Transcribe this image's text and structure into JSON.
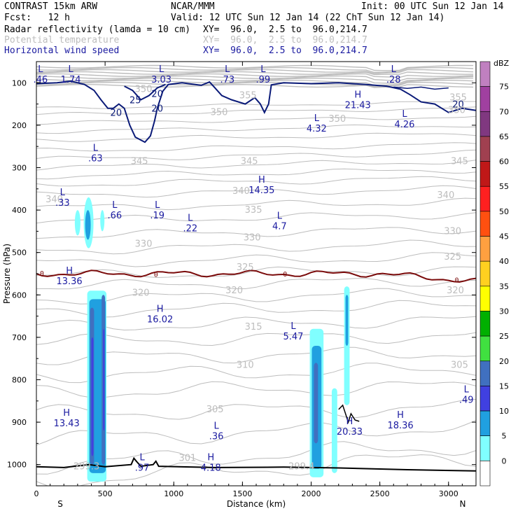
{
  "header": {
    "model": "CONTRAST 15km ARW",
    "center": "NCAR/MMM",
    "init": "Init: 00 UTC Sun 12 Jan 14",
    "fcst": "Fcst:   12 h",
    "valid": "Valid: 12 UTC Sun 12 Jan 14 (22 ChT Sun 12 Jan 14)"
  },
  "fields": [
    {
      "name": "Radar reflectivity (lamda = 10 cm)",
      "xy": "XY=  96.0,  2.5 to  96.0,214.7",
      "color": "#000000"
    },
    {
      "name": "Potential temperature",
      "xy": "XY=  96.0,  2.5 to  96.0,214.7",
      "color": "#bdbdbd"
    },
    {
      "name": "Horizontal wind speed",
      "xy": "XY=  96.0,  2.5 to  96.0,214.7",
      "color": "#1a1aa0"
    }
  ],
  "chart_data": {
    "type": "cross-section",
    "xlabel": "Distance (km)",
    "ylabel": "Pressure (hPa)",
    "xlim": [
      0,
      3200
    ],
    "ylim": [
      1050,
      50
    ],
    "y_scale": "linear (pressure, inverted)",
    "x_ticks": [
      "0",
      "500",
      "1000",
      "1500",
      "2000",
      "2500",
      "3000"
    ],
    "y_ticks": [
      "100",
      "200",
      "300",
      "400",
      "500",
      "600",
      "700",
      "800",
      "900",
      "1000"
    ],
    "x_end_labels": {
      "left": "S",
      "right": "N"
    },
    "colorbar": {
      "unit": "dBZ",
      "levels": [
        "75",
        "70",
        "65",
        "60",
        "55",
        "50",
        "45",
        "40",
        "35",
        "30",
        "25",
        "20",
        "15",
        "10",
        "5",
        "0"
      ],
      "colors": [
        "#c080c0",
        "#a040a0",
        "#803880",
        "#a04050",
        "#c01818",
        "#ff2020",
        "#ff5010",
        "#ffa040",
        "#ffd020",
        "#ffff00",
        "#00b000",
        "#40e040",
        "#4070c0",
        "#4040e0",
        "#20a0e0",
        "#80ffff",
        "#ffffff"
      ]
    },
    "theta_labels": [
      {
        "v": "350",
        "x": 1330,
        "p": 170
      },
      {
        "v": "355",
        "x": 1540,
        "p": 130
      },
      {
        "v": "355",
        "x": 3070,
        "p": 135
      },
      {
        "v": "350",
        "x": 2190,
        "p": 185
      },
      {
        "v": "350",
        "x": 3060,
        "p": 165
      },
      {
        "v": "350",
        "x": 780,
        "p": 115
      },
      {
        "v": "345",
        "x": 750,
        "p": 285
      },
      {
        "v": "345",
        "x": 1550,
        "p": 285
      },
      {
        "v": "345",
        "x": 3080,
        "p": 285
      },
      {
        "v": "340",
        "x": 1490,
        "p": 355
      },
      {
        "v": "340",
        "x": 2980,
        "p": 365
      },
      {
        "v": "340",
        "x": 130,
        "p": 375
      },
      {
        "v": "335",
        "x": 1580,
        "p": 400
      },
      {
        "v": "330",
        "x": 780,
        "p": 480
      },
      {
        "v": "330",
        "x": 1570,
        "p": 465
      },
      {
        "v": "330",
        "x": 3030,
        "p": 450
      },
      {
        "v": "325",
        "x": 1520,
        "p": 535
      },
      {
        "v": "325",
        "x": 3030,
        "p": 510
      },
      {
        "v": "320",
        "x": 760,
        "p": 595
      },
      {
        "v": "320",
        "x": 1440,
        "p": 590
      },
      {
        "v": "320",
        "x": 3050,
        "p": 590
      },
      {
        "v": "315",
        "x": 1580,
        "p": 675
      },
      {
        "v": "310",
        "x": 1520,
        "p": 765
      },
      {
        "v": "305",
        "x": 1300,
        "p": 870
      },
      {
        "v": "305",
        "x": 3080,
        "p": 765
      },
      {
        "v": "301",
        "x": 1100,
        "p": 985
      },
      {
        "v": "299.3",
        "x": 365,
        "p": 1005
      },
      {
        "v": "299.4",
        "x": 1930,
        "p": 1005
      }
    ],
    "wind_contours": [
      {
        "v": "20",
        "label_x": 580,
        "label_p": 170
      },
      {
        "v": "25",
        "label_x": 720,
        "label_p": 140
      },
      {
        "v": "20",
        "label_x": 880,
        "label_p": 125
      },
      {
        "v": "20",
        "label_x": 880,
        "label_p": 160
      },
      {
        "v": "20",
        "label_x": 3070,
        "label_p": 150
      }
    ],
    "freezing_level": {
      "label": "0",
      "p_approx": 550
    },
    "extrema": [
      {
        "t": "L",
        "v": ".46",
        "x": 30,
        "p": 85,
        "c": "blue"
      },
      {
        "t": "L",
        "v": "1.74",
        "x": 250,
        "p": 85,
        "c": "blue"
      },
      {
        "t": "L",
        "v": "3.03",
        "x": 910,
        "p": 85,
        "c": "blue"
      },
      {
        "t": "L",
        "v": ".73",
        "x": 1390,
        "p": 85,
        "c": "blue"
      },
      {
        "t": "L",
        "v": ".99",
        "x": 1650,
        "p": 85,
        "c": "blue"
      },
      {
        "t": "L",
        "v": ".28",
        "x": 2600,
        "p": 85,
        "c": "blue"
      },
      {
        "t": "H",
        "v": "21.43",
        "x": 2340,
        "p": 145,
        "c": "blue"
      },
      {
        "t": "L",
        "v": "4.32",
        "x": 2040,
        "p": 200,
        "c": "blue"
      },
      {
        "t": "L",
        "v": "4.26",
        "x": 2680,
        "p": 190,
        "c": "blue"
      },
      {
        "t": "L",
        "v": ".63",
        "x": 430,
        "p": 270,
        "c": "blue"
      },
      {
        "t": "H",
        "v": "14.35",
        "x": 1640,
        "p": 345,
        "c": "blue"
      },
      {
        "t": "L",
        "v": ".33",
        "x": 190,
        "p": 375,
        "c": "blue"
      },
      {
        "t": "L",
        "v": ".66",
        "x": 570,
        "p": 405,
        "c": "blue"
      },
      {
        "t": "L",
        "v": ".19",
        "x": 880,
        "p": 405,
        "c": "blue"
      },
      {
        "t": "L",
        "v": ".22",
        "x": 1120,
        "p": 435,
        "c": "blue"
      },
      {
        "t": "L",
        "v": "4.7",
        "x": 1770,
        "p": 430,
        "c": "blue"
      },
      {
        "t": "H",
        "v": "13.36",
        "x": 240,
        "p": 560,
        "c": "blue"
      },
      {
        "t": "H",
        "v": "16.02",
        "x": 900,
        "p": 650,
        "c": "blue"
      },
      {
        "t": "L",
        "v": "5.47",
        "x": 1870,
        "p": 690,
        "c": "blue"
      },
      {
        "t": "H",
        "v": "13.43",
        "x": 220,
        "p": 895,
        "c": "blue"
      },
      {
        "t": "L",
        "v": ".36",
        "x": 1310,
        "p": 925,
        "c": "blue"
      },
      {
        "t": "H",
        "v": "20.33",
        "x": 2280,
        "p": 915,
        "c": "blue"
      },
      {
        "t": "H",
        "v": "18.36",
        "x": 2650,
        "p": 900,
        "c": "blue"
      },
      {
        "t": "L",
        "v": ".49",
        "x": 3130,
        "p": 840,
        "c": "blue"
      },
      {
        "t": "H",
        "v": "4.18",
        "x": 1270,
        "p": 1000,
        "c": "blue"
      },
      {
        "t": "L",
        "v": ".97",
        "x": 770,
        "p": 1000,
        "c": "blue"
      }
    ]
  }
}
